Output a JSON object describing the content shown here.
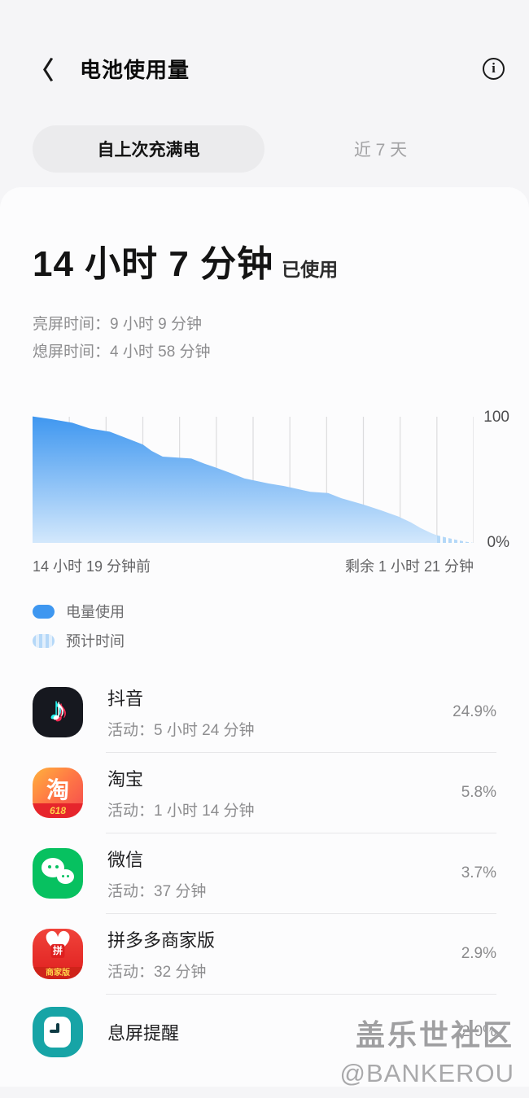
{
  "header": {
    "title": "电池使用量",
    "back_icon": "chevron-left",
    "info_icon": "info-circle"
  },
  "tabs": [
    {
      "label": "自上次充满电",
      "selected": true
    },
    {
      "label": "近 7 天",
      "selected": false
    }
  ],
  "summary": {
    "duration": "14 小时 7 分钟",
    "suffix": "已使用",
    "screen_on": "亮屏时间：9 小时 9 分钟",
    "screen_off": "熄屏时间：4 小时 58 分钟"
  },
  "chart_data": {
    "type": "area",
    "title": "",
    "ylabel": "",
    "ylim": [
      0,
      100
    ],
    "y_top_label": "100",
    "y_bottom_label": "0%",
    "x_start_label": "14 小时 19 分钟前",
    "x_end_label": "剩余 1 小时 21 分钟",
    "gridlines": 12,
    "grid_color": "#dcdcde",
    "area_color_top": "#3f97f0",
    "area_color_bottom": "#d3e8fc",
    "stripe_color": "#b4d8f8",
    "series": [
      {
        "name": "电量使用",
        "style": "solid",
        "points": [
          [
            0.0,
            99
          ],
          [
            0.04,
            97
          ],
          [
            0.09,
            94
          ],
          [
            0.13,
            89.5
          ],
          [
            0.175,
            87
          ],
          [
            0.22,
            81
          ],
          [
            0.25,
            77
          ],
          [
            0.27,
            72
          ],
          [
            0.295,
            67.5
          ],
          [
            0.36,
            66
          ],
          [
            0.39,
            62
          ],
          [
            0.415,
            59
          ],
          [
            0.45,
            54.5
          ],
          [
            0.48,
            50.5
          ],
          [
            0.535,
            46.5
          ],
          [
            0.57,
            44.5
          ],
          [
            0.63,
            40
          ],
          [
            0.67,
            39
          ],
          [
            0.7,
            35
          ],
          [
            0.75,
            30
          ],
          [
            0.79,
            25.5
          ],
          [
            0.83,
            20.5
          ],
          [
            0.858,
            16
          ],
          [
            0.88,
            11.5
          ],
          [
            0.905,
            7.5
          ],
          [
            0.917,
            6
          ]
        ]
      },
      {
        "name": "预计时间",
        "style": "striped",
        "points": [
          [
            0.917,
            6
          ],
          [
            0.94,
            4
          ],
          [
            0.96,
            2.5
          ],
          [
            0.98,
            1
          ],
          [
            1.0,
            0
          ]
        ]
      }
    ]
  },
  "legend": [
    {
      "label": "电量使用",
      "style": "solid"
    },
    {
      "label": "预计时间",
      "style": "striped"
    }
  ],
  "apps": [
    {
      "icon": "douyin",
      "name": "抖音",
      "activity": "活动：5 小时 24 分钟",
      "percent": "24.9%"
    },
    {
      "icon": "taobao",
      "name": "淘宝",
      "activity": "活动：1 小时 14 分钟",
      "percent": "5.8%",
      "icon_char": "淘",
      "icon_badge": "618"
    },
    {
      "icon": "wechat",
      "name": "微信",
      "activity": "活动：37 分钟",
      "percent": "3.7%"
    },
    {
      "icon": "pdd",
      "name": "拼多多商家版",
      "activity": "活动：32 分钟",
      "percent": "2.9%",
      "icon_char": "拼",
      "icon_badge": "商家版"
    },
    {
      "icon": "clock",
      "name": "息屏提醒",
      "activity": "",
      "percent": "2.0%"
    }
  ],
  "watermark": {
    "line1": "盖乐世社区",
    "line2": "@BANKEROU"
  }
}
